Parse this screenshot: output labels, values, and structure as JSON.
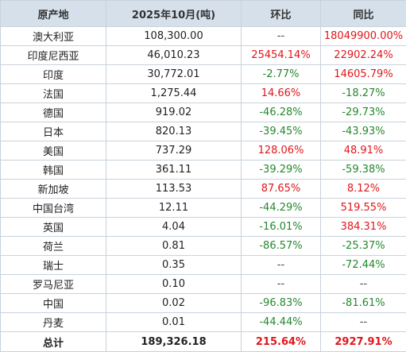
{
  "header": {
    "origin": "原产地",
    "month": "2025年10月(吨)",
    "mom": "环比",
    "yoy": "同比"
  },
  "colors": {
    "up": "#e0161b",
    "down": "#24882d",
    "flat": "#444444",
    "header_bg": "#d6e0ea"
  },
  "rows": [
    {
      "origin": "澳大利亚",
      "value": "108,300.00",
      "mom": "--",
      "mom_dir": "flat",
      "yoy": "18049900.00%",
      "yoy_dir": "up"
    },
    {
      "origin": "印度尼西亚",
      "value": "46,010.23",
      "mom": "25454.14%",
      "mom_dir": "up",
      "yoy": "22902.24%",
      "yoy_dir": "up"
    },
    {
      "origin": "印度",
      "value": "30,772.01",
      "mom": "-2.77%",
      "mom_dir": "down",
      "yoy": "14605.79%",
      "yoy_dir": "up"
    },
    {
      "origin": "法国",
      "value": "1,275.44",
      "mom": "14.66%",
      "mom_dir": "up",
      "yoy": "-18.27%",
      "yoy_dir": "down"
    },
    {
      "origin": "德国",
      "value": "919.02",
      "mom": "-46.28%",
      "mom_dir": "down",
      "yoy": "-29.73%",
      "yoy_dir": "down"
    },
    {
      "origin": "日本",
      "value": "820.13",
      "mom": "-39.45%",
      "mom_dir": "down",
      "yoy": "-43.93%",
      "yoy_dir": "down"
    },
    {
      "origin": "美国",
      "value": "737.29",
      "mom": "128.06%",
      "mom_dir": "up",
      "yoy": "48.91%",
      "yoy_dir": "up"
    },
    {
      "origin": "韩国",
      "value": "361.11",
      "mom": "-39.29%",
      "mom_dir": "down",
      "yoy": "-59.38%",
      "yoy_dir": "down"
    },
    {
      "origin": "新加坡",
      "value": "113.53",
      "mom": "87.65%",
      "mom_dir": "up",
      "yoy": "8.12%",
      "yoy_dir": "up"
    },
    {
      "origin": "中国台湾",
      "value": "12.11",
      "mom": "-44.29%",
      "mom_dir": "down",
      "yoy": "519.55%",
      "yoy_dir": "up"
    },
    {
      "origin": "英国",
      "value": "4.04",
      "mom": "-16.01%",
      "mom_dir": "down",
      "yoy": "384.31%",
      "yoy_dir": "up"
    },
    {
      "origin": "荷兰",
      "value": "0.81",
      "mom": "-86.57%",
      "mom_dir": "down",
      "yoy": "-25.37%",
      "yoy_dir": "down"
    },
    {
      "origin": "瑞士",
      "value": "0.35",
      "mom": "--",
      "mom_dir": "flat",
      "yoy": "-72.44%",
      "yoy_dir": "down"
    },
    {
      "origin": "罗马尼亚",
      "value": "0.10",
      "mom": "--",
      "mom_dir": "flat",
      "yoy": "--",
      "yoy_dir": "flat"
    },
    {
      "origin": "中国",
      "value": "0.02",
      "mom": "-96.83%",
      "mom_dir": "down",
      "yoy": "-81.61%",
      "yoy_dir": "down"
    },
    {
      "origin": "丹麦",
      "value": "0.01",
      "mom": "-44.44%",
      "mom_dir": "down",
      "yoy": "--",
      "yoy_dir": "flat"
    }
  ],
  "total": {
    "origin": "总计",
    "value": "189,326.18",
    "mom": "215.64%",
    "mom_dir": "up",
    "yoy": "2927.91%",
    "yoy_dir": "up"
  }
}
